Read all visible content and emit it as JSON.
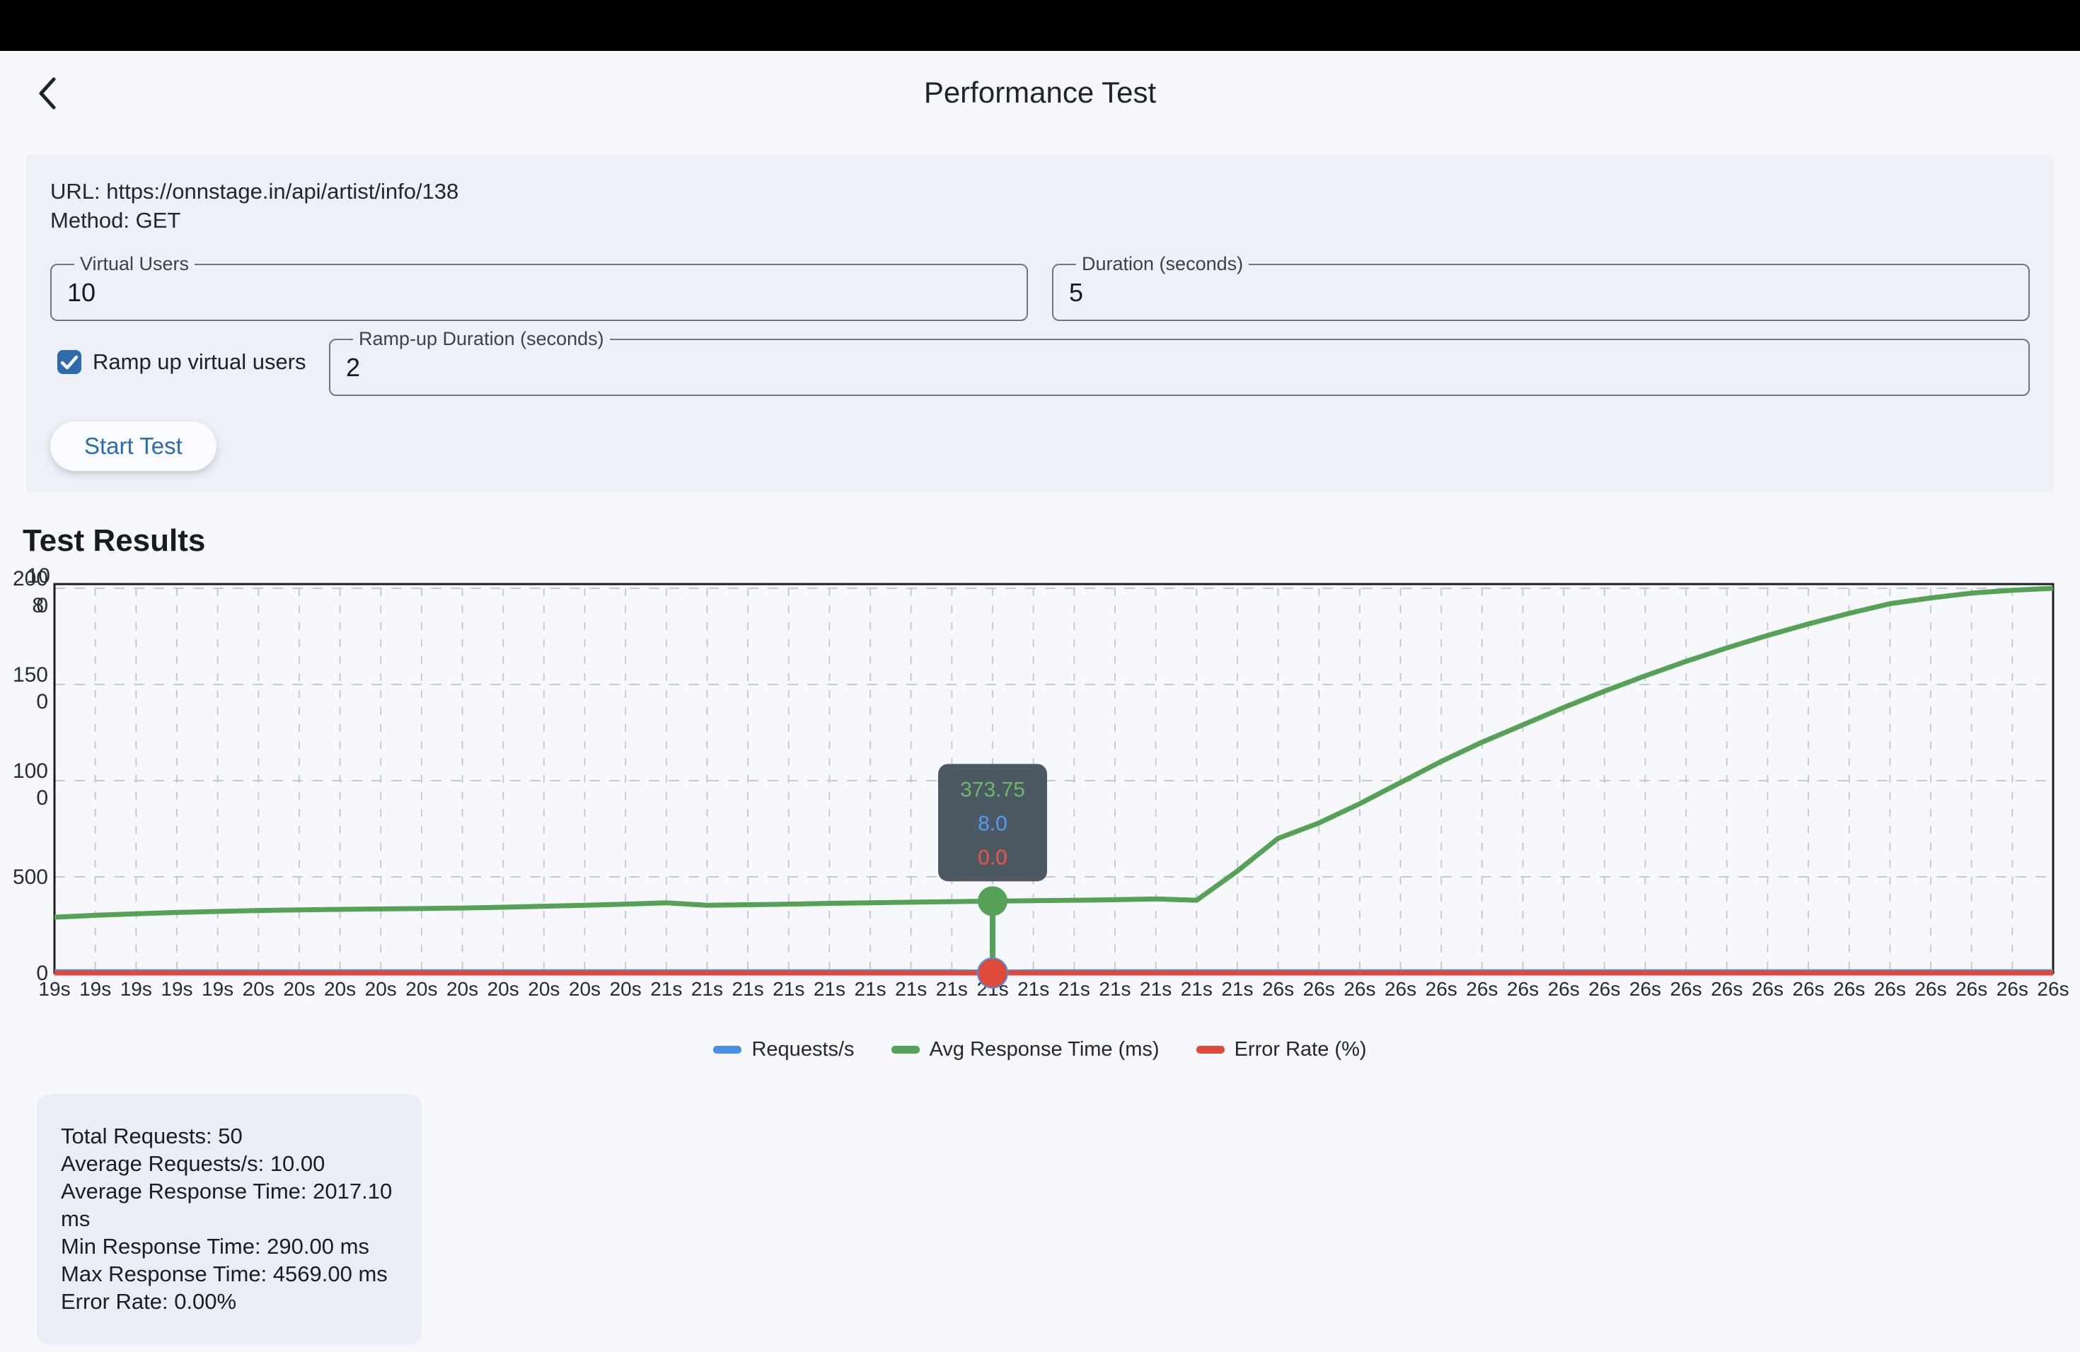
{
  "header": {
    "title": "Performance Test",
    "back_icon": "chevron-left"
  },
  "form": {
    "url_line": "URL: https://onnstage.in/api/artist/info/138",
    "method_line": "Method: GET",
    "virtual_users": {
      "label": "Virtual Users",
      "value": "10"
    },
    "duration": {
      "label": "Duration (seconds)",
      "value": "5"
    },
    "ramp_checkbox": {
      "checked": true,
      "label": "Ramp up virtual users"
    },
    "ramp_duration": {
      "label": "Ramp-up Duration (seconds)",
      "value": "2"
    },
    "start_button_label": "Start Test"
  },
  "results": {
    "heading": "Test Results",
    "stats": [
      "Total Requests: 50",
      "Average Requests/s: 10.00",
      "Average Response Time: 2017.10 ms",
      "Min Response Time: 290.00 ms",
      "Max Response Time: 4569.00 ms",
      "Error Rate: 0.00%"
    ]
  },
  "chart_data": {
    "type": "line",
    "categories": [
      "19s",
      "19s",
      "19s",
      "19s",
      "19s",
      "20s",
      "20s",
      "20s",
      "20s",
      "20s",
      "20s",
      "20s",
      "20s",
      "20s",
      "20s",
      "21s",
      "21s",
      "21s",
      "21s",
      "21s",
      "21s",
      "21s",
      "21s",
      "21s",
      "21s",
      "21s",
      "21s",
      "21s",
      "21s",
      "21s",
      "26s",
      "26s",
      "26s",
      "26s",
      "26s",
      "26s",
      "26s",
      "26s",
      "26s",
      "26s",
      "26s",
      "26s",
      "26s",
      "26s",
      "26s",
      "26s",
      "26s",
      "26s",
      "26s",
      "26s"
    ],
    "series": [
      {
        "name": "Requests/s",
        "color": "#4a8ee8",
        "values": [
          10,
          10,
          10,
          10,
          10,
          10,
          10,
          10,
          10,
          10,
          10,
          10,
          10,
          10,
          10,
          10,
          10,
          10,
          10,
          10,
          10,
          10,
          10,
          8,
          10,
          10,
          10,
          10,
          10,
          10,
          10,
          10,
          10,
          10,
          10,
          10,
          10,
          10,
          10,
          10,
          10,
          10,
          10,
          10,
          10,
          10,
          10,
          10,
          10,
          10
        ]
      },
      {
        "name": "Avg Response Time (ms)",
        "color": "#55a155",
        "values": [
          290,
          300,
          308,
          315,
          320,
          325,
          328,
          331,
          333,
          335,
          338,
          342,
          347,
          352,
          358,
          365,
          352,
          355,
          358,
          362,
          365,
          368,
          371,
          373.75,
          376,
          378,
          381,
          385,
          378,
          530,
          700,
          780,
          880,
          990,
          1100,
          1200,
          1290,
          1380,
          1465,
          1545,
          1620,
          1690,
          1755,
          1815,
          1870,
          1920,
          1950,
          1975,
          1990,
          2000
        ]
      },
      {
        "name": "Error Rate (%)",
        "color": "#df4a38",
        "values": [
          0,
          0,
          0,
          0,
          0,
          0,
          0,
          0,
          0,
          0,
          0,
          0,
          0,
          0,
          0,
          0,
          0,
          0,
          0,
          0,
          0,
          0,
          0,
          0,
          0,
          0,
          0,
          0,
          0,
          0,
          0,
          0,
          0,
          0,
          0,
          0,
          0,
          0,
          0,
          0,
          0,
          0,
          0,
          0,
          0,
          0,
          0,
          0,
          0,
          0
        ]
      }
    ],
    "ylabel": "",
    "xlabel": "",
    "ylim": [
      0,
      2000
    ],
    "y_ticks": [
      2000,
      1500,
      1000,
      500,
      0
    ],
    "y_axis_overlap_labels": [
      "10",
      "8"
    ],
    "grid": "dashed",
    "legend_position": "bottom",
    "highlight": {
      "index": 23,
      "tooltip_values": [
        "373.75",
        "8.0",
        "0.0"
      ],
      "tooltip_colors": [
        "#69b969",
        "#4f9cf7",
        "#ee5345"
      ],
      "tooltip_bg": "#4c5963"
    },
    "colors": {
      "grid": "#c2ccd6",
      "border": "#1a1d22",
      "tick_text": "#272b32"
    }
  },
  "colors": {
    "accent_blue": "#2d6cab",
    "panel_bg": "#edf0f7",
    "page_bg": "#f6f8fb"
  }
}
